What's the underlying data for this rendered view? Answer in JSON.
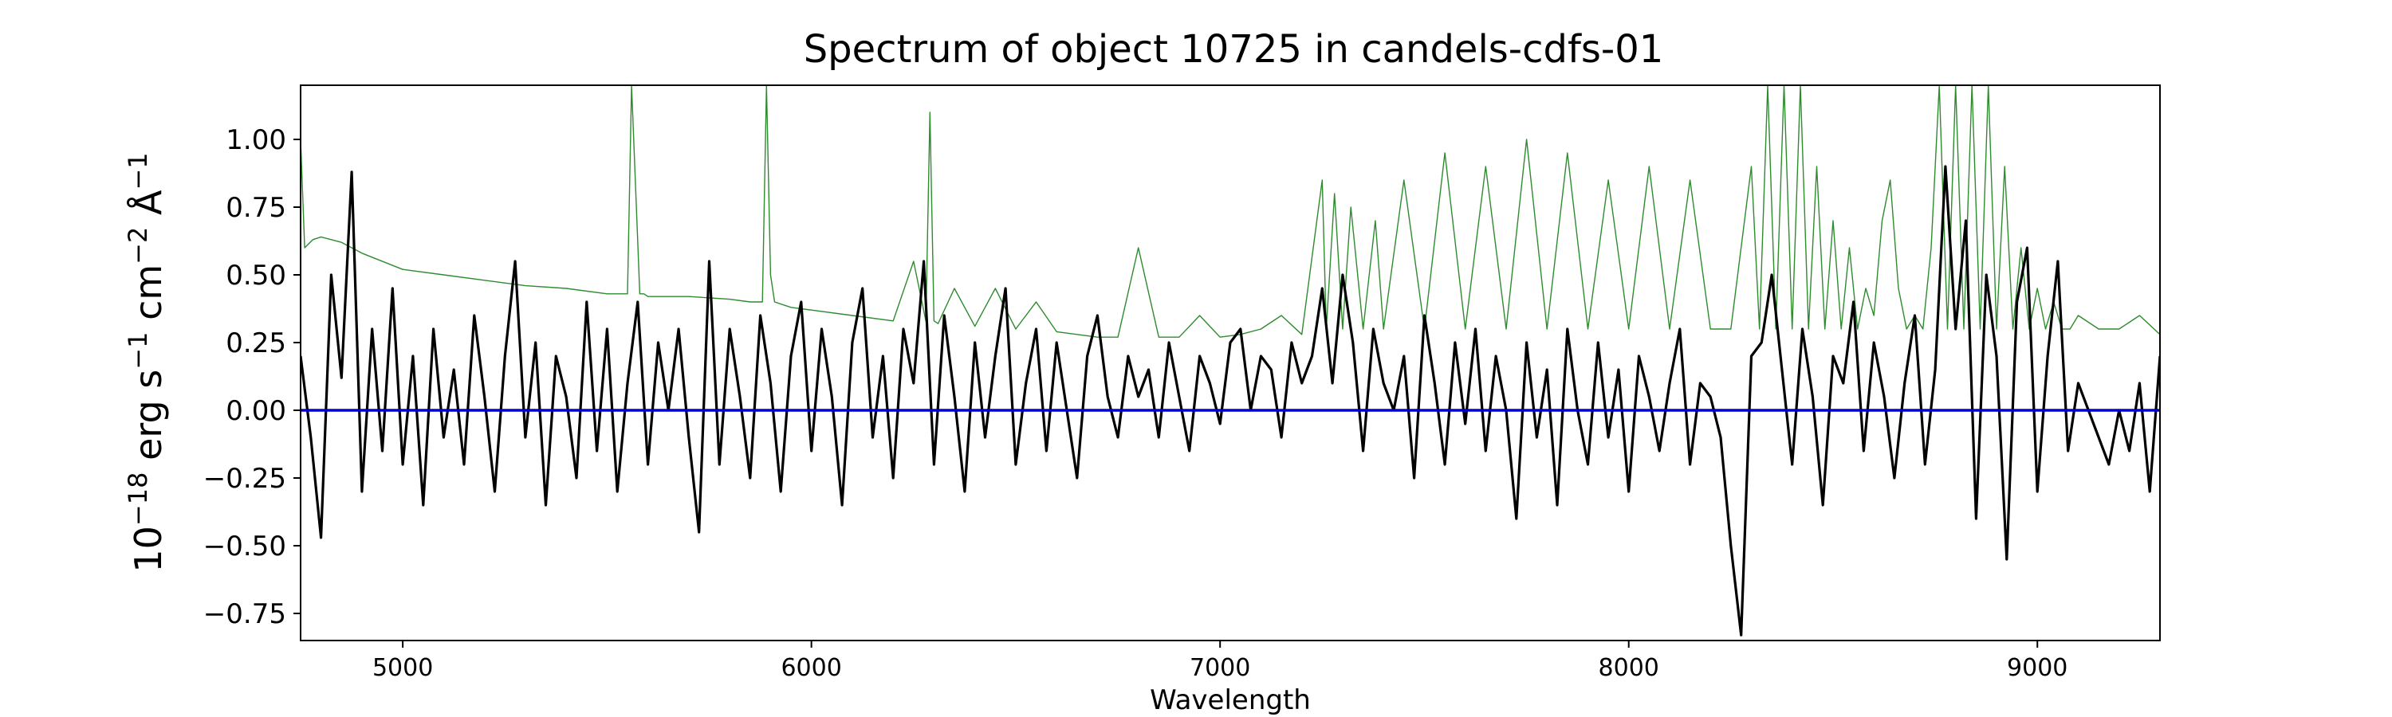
{
  "chart_data": {
    "type": "line",
    "title": "Spectrum of object 10725 in candels-cdfs-01",
    "xlabel": "Wavelength",
    "ylabel": {
      "base": "10",
      "exp18": "−18",
      "erg": " erg s",
      "exp1": "−1",
      "cm": " cm",
      "exp2": "−2",
      "ang": " Å",
      "exp3": "−1"
    },
    "xlim": [
      4750,
      9300
    ],
    "ylim": [
      -0.85,
      1.2
    ],
    "xticks": [
      5000,
      6000,
      7000,
      8000,
      9000
    ],
    "xtick_labels": [
      "5000",
      "6000",
      "7000",
      "8000",
      "9000"
    ],
    "yticks": [
      1.0,
      0.75,
      0.5,
      0.25,
      0.0,
      -0.25,
      -0.5,
      -0.75
    ],
    "ytick_labels": [
      "1.00",
      "0.75",
      "0.50",
      "0.25",
      "0.00",
      "−0.25",
      "−0.50",
      "−0.75"
    ],
    "grid": false,
    "series": [
      {
        "role": "flux",
        "color": "#000000",
        "x": [
          4750,
          4775,
          4800,
          4825,
          4850,
          4875,
          4900,
          4925,
          4950,
          4975,
          5000,
          5025,
          5050,
          5075,
          5100,
          5125,
          5150,
          5175,
          5200,
          5225,
          5250,
          5275,
          5300,
          5325,
          5350,
          5375,
          5400,
          5425,
          5450,
          5475,
          5500,
          5525,
          5550,
          5575,
          5600,
          5625,
          5650,
          5675,
          5700,
          5725,
          5750,
          5775,
          5800,
          5825,
          5850,
          5875,
          5900,
          5925,
          5950,
          5975,
          6000,
          6025,
          6050,
          6075,
          6100,
          6125,
          6150,
          6175,
          6200,
          6225,
          6250,
          6275,
          6300,
          6325,
          6350,
          6375,
          6400,
          6425,
          6450,
          6475,
          6500,
          6525,
          6550,
          6575,
          6600,
          6625,
          6650,
          6675,
          6700,
          6725,
          6750,
          6775,
          6800,
          6825,
          6850,
          6875,
          6900,
          6925,
          6950,
          6975,
          7000,
          7025,
          7050,
          7075,
          7100,
          7125,
          7150,
          7175,
          7200,
          7225,
          7250,
          7275,
          7300,
          7325,
          7350,
          7375,
          7400,
          7425,
          7450,
          7475,
          7500,
          7525,
          7550,
          7575,
          7600,
          7625,
          7650,
          7675,
          7700,
          7725,
          7750,
          7775,
          7800,
          7825,
          7850,
          7875,
          7900,
          7925,
          7950,
          7975,
          8000,
          8025,
          8050,
          8075,
          8100,
          8125,
          8150,
          8175,
          8200,
          8225,
          8250,
          8275,
          8300,
          8325,
          8350,
          8375,
          8400,
          8425,
          8450,
          8475,
          8500,
          8525,
          8550,
          8575,
          8600,
          8625,
          8650,
          8675,
          8700,
          8725,
          8750,
          8775,
          8800,
          8825,
          8850,
          8875,
          8900,
          8925,
          8950,
          8975,
          9000,
          9025,
          9050,
          9075,
          9100,
          9125,
          9150,
          9175,
          9200,
          9225,
          9250,
          9275,
          9300
        ],
        "y": [
          0.2,
          -0.1,
          -0.47,
          0.5,
          0.12,
          0.88,
          -0.3,
          0.3,
          -0.15,
          0.45,
          -0.2,
          0.2,
          -0.35,
          0.3,
          -0.1,
          0.15,
          -0.2,
          0.35,
          0.05,
          -0.3,
          0.2,
          0.55,
          -0.1,
          0.25,
          -0.35,
          0.2,
          0.05,
          -0.25,
          0.4,
          -0.15,
          0.3,
          -0.3,
          0.1,
          0.4,
          -0.2,
          0.25,
          0.0,
          0.3,
          -0.1,
          -0.45,
          0.55,
          -0.2,
          0.3,
          0.05,
          -0.25,
          0.35,
          0.1,
          -0.3,
          0.2,
          0.4,
          -0.15,
          0.3,
          0.05,
          -0.35,
          0.25,
          0.45,
          -0.1,
          0.2,
          -0.25,
          0.3,
          0.1,
          0.55,
          -0.2,
          0.35,
          0.05,
          -0.3,
          0.25,
          -0.1,
          0.2,
          0.45,
          -0.2,
          0.1,
          0.3,
          -0.15,
          0.25,
          0.0,
          -0.25,
          0.2,
          0.35,
          0.05,
          -0.1,
          0.2,
          0.05,
          0.15,
          -0.1,
          0.25,
          0.05,
          -0.15,
          0.2,
          0.1,
          -0.05,
          0.25,
          0.3,
          0.0,
          0.2,
          0.15,
          -0.1,
          0.25,
          0.1,
          0.2,
          0.45,
          0.1,
          0.5,
          0.25,
          -0.15,
          0.3,
          0.1,
          0.0,
          0.2,
          -0.25,
          0.35,
          0.1,
          -0.2,
          0.25,
          -0.05,
          0.3,
          -0.15,
          0.2,
          0.0,
          -0.4,
          0.25,
          -0.1,
          0.15,
          -0.35,
          0.3,
          0.0,
          -0.2,
          0.25,
          -0.1,
          0.15,
          -0.3,
          0.2,
          0.05,
          -0.15,
          0.1,
          0.3,
          -0.2,
          0.1,
          0.05,
          -0.1,
          -0.5,
          -0.83,
          0.2,
          0.25,
          0.5,
          0.15,
          -0.2,
          0.3,
          0.05,
          -0.35,
          0.2,
          0.1,
          0.4,
          -0.15,
          0.25,
          0.05,
          -0.25,
          0.1,
          0.35,
          -0.2,
          0.15,
          0.9,
          0.3,
          0.7,
          -0.4,
          0.5,
          0.2,
          -0.55,
          0.4,
          0.6,
          -0.3,
          0.2,
          0.55,
          -0.15,
          0.1,
          0.0,
          -0.1,
          -0.2,
          0.0,
          -0.15,
          0.1,
          -0.3,
          0.2
        ]
      },
      {
        "role": "error",
        "color": "#2e8b2e",
        "x": [
          4750,
          4760,
          4780,
          4800,
          4850,
          4900,
          5000,
          5100,
          5200,
          5300,
          5400,
          5500,
          5550,
          5560,
          5580,
          5590,
          5600,
          5700,
          5800,
          5850,
          5880,
          5890,
          5900,
          5910,
          5950,
          6000,
          6100,
          6200,
          6250,
          6280,
          6290,
          6300,
          6310,
          6350,
          6400,
          6450,
          6500,
          6550,
          6600,
          6650,
          6700,
          6750,
          6800,
          6850,
          6900,
          6950,
          7000,
          7050,
          7100,
          7150,
          7200,
          7250,
          7260,
          7280,
          7300,
          7320,
          7350,
          7380,
          7400,
          7450,
          7500,
          7550,
          7600,
          7650,
          7700,
          7750,
          7800,
          7850,
          7900,
          7950,
          8000,
          8050,
          8100,
          8150,
          8200,
          8250,
          8300,
          8320,
          8340,
          8360,
          8380,
          8400,
          8420,
          8440,
          8460,
          8480,
          8500,
          8520,
          8540,
          8560,
          8580,
          8600,
          8620,
          8640,
          8660,
          8680,
          8700,
          8720,
          8740,
          8760,
          8780,
          8800,
          8820,
          8840,
          8860,
          8880,
          8900,
          8920,
          8940,
          8960,
          8980,
          9000,
          9020,
          9040,
          9060,
          9080,
          9100,
          9150,
          9200,
          9250,
          9300
        ],
        "y": [
          1.0,
          0.6,
          0.63,
          0.64,
          0.62,
          0.58,
          0.52,
          0.5,
          0.48,
          0.46,
          0.45,
          0.43,
          0.43,
          1.2,
          0.43,
          0.43,
          0.42,
          0.42,
          0.41,
          0.4,
          0.4,
          1.2,
          0.5,
          0.4,
          0.38,
          0.37,
          0.35,
          0.33,
          0.55,
          0.33,
          1.1,
          0.33,
          0.32,
          0.45,
          0.31,
          0.45,
          0.3,
          0.4,
          0.29,
          0.28,
          0.27,
          0.27,
          0.6,
          0.27,
          0.27,
          0.35,
          0.27,
          0.28,
          0.3,
          0.35,
          0.28,
          0.85,
          0.3,
          0.8,
          0.3,
          0.75,
          0.3,
          0.7,
          0.3,
          0.85,
          0.3,
          0.95,
          0.3,
          0.9,
          0.3,
          1.0,
          0.3,
          0.95,
          0.3,
          0.85,
          0.3,
          0.9,
          0.3,
          0.85,
          0.3,
          0.3,
          0.9,
          0.3,
          1.2,
          0.3,
          1.2,
          0.3,
          1.2,
          0.3,
          0.9,
          0.3,
          0.7,
          0.3,
          0.6,
          0.3,
          0.45,
          0.35,
          0.7,
          0.85,
          0.45,
          0.3,
          0.35,
          0.3,
          0.6,
          1.2,
          0.3,
          1.2,
          0.3,
          1.2,
          0.3,
          1.2,
          0.3,
          0.9,
          0.3,
          0.6,
          0.3,
          0.45,
          0.3,
          0.4,
          0.3,
          0.3,
          0.35,
          0.3,
          0.3,
          0.35,
          0.28
        ]
      },
      {
        "role": "zero",
        "color": "#0000cc",
        "x": [
          4750,
          9300
        ],
        "y": [
          0.0,
          0.0
        ]
      }
    ]
  }
}
